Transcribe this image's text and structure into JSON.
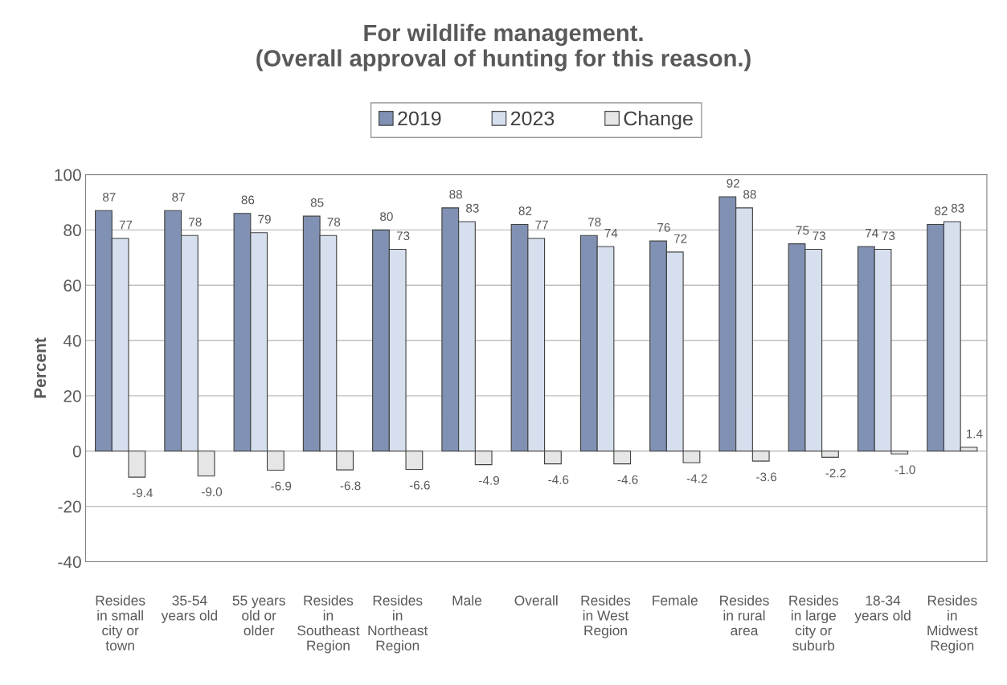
{
  "chart_data": {
    "type": "bar",
    "title": "For wildlife management.\n(Overall approval of hunting for this reason.)",
    "ylabel": "Percent",
    "categories": [
      "Resides\nin small\ncity or\ntown",
      "35-54\nyears old",
      "55 years\nold or\nolder",
      "Resides\nin\nSoutheast\nRegion",
      "Resides\nin\nNortheast\nRegion",
      "Male",
      "Overall",
      "Resides\nin West\nRegion",
      "Female",
      "Resides\nin rural\narea",
      "Resides\nin large\ncity or\nsuburb",
      "18-34\nyears old",
      "Resides\nin\nMidwest\nRegion"
    ],
    "series": [
      {
        "name": "2019",
        "color": "#8091b3",
        "values": [
          87,
          87,
          86,
          85,
          80,
          88,
          82,
          78,
          76,
          92,
          75,
          74,
          82
        ]
      },
      {
        "name": "2023",
        "color": "#d6dfee",
        "values": [
          77,
          78,
          79,
          78,
          73,
          83,
          77,
          74,
          72,
          88,
          73,
          73,
          83
        ]
      },
      {
        "name": "Change",
        "color": "#e6e6e6",
        "values": [
          -9.4,
          -9.0,
          -6.9,
          -6.8,
          -6.6,
          -4.9,
          -4.6,
          -4.6,
          -4.2,
          -3.6,
          -2.2,
          -1.0,
          1.4
        ],
        "value_labels": [
          "-9.4",
          "-9.0",
          "-6.9",
          "-6.8",
          "-6.6",
          "-4.9",
          "-4.6",
          "-4.6",
          "-4.2",
          "-3.6",
          "-2.2",
          "-1.0",
          "1.4"
        ]
      }
    ],
    "ylim": [
      -40,
      100
    ],
    "yticks": [
      -40,
      -20,
      0,
      20,
      40,
      60,
      80,
      100
    ],
    "grid": "y",
    "legend": "top",
    "data_labels": true
  }
}
